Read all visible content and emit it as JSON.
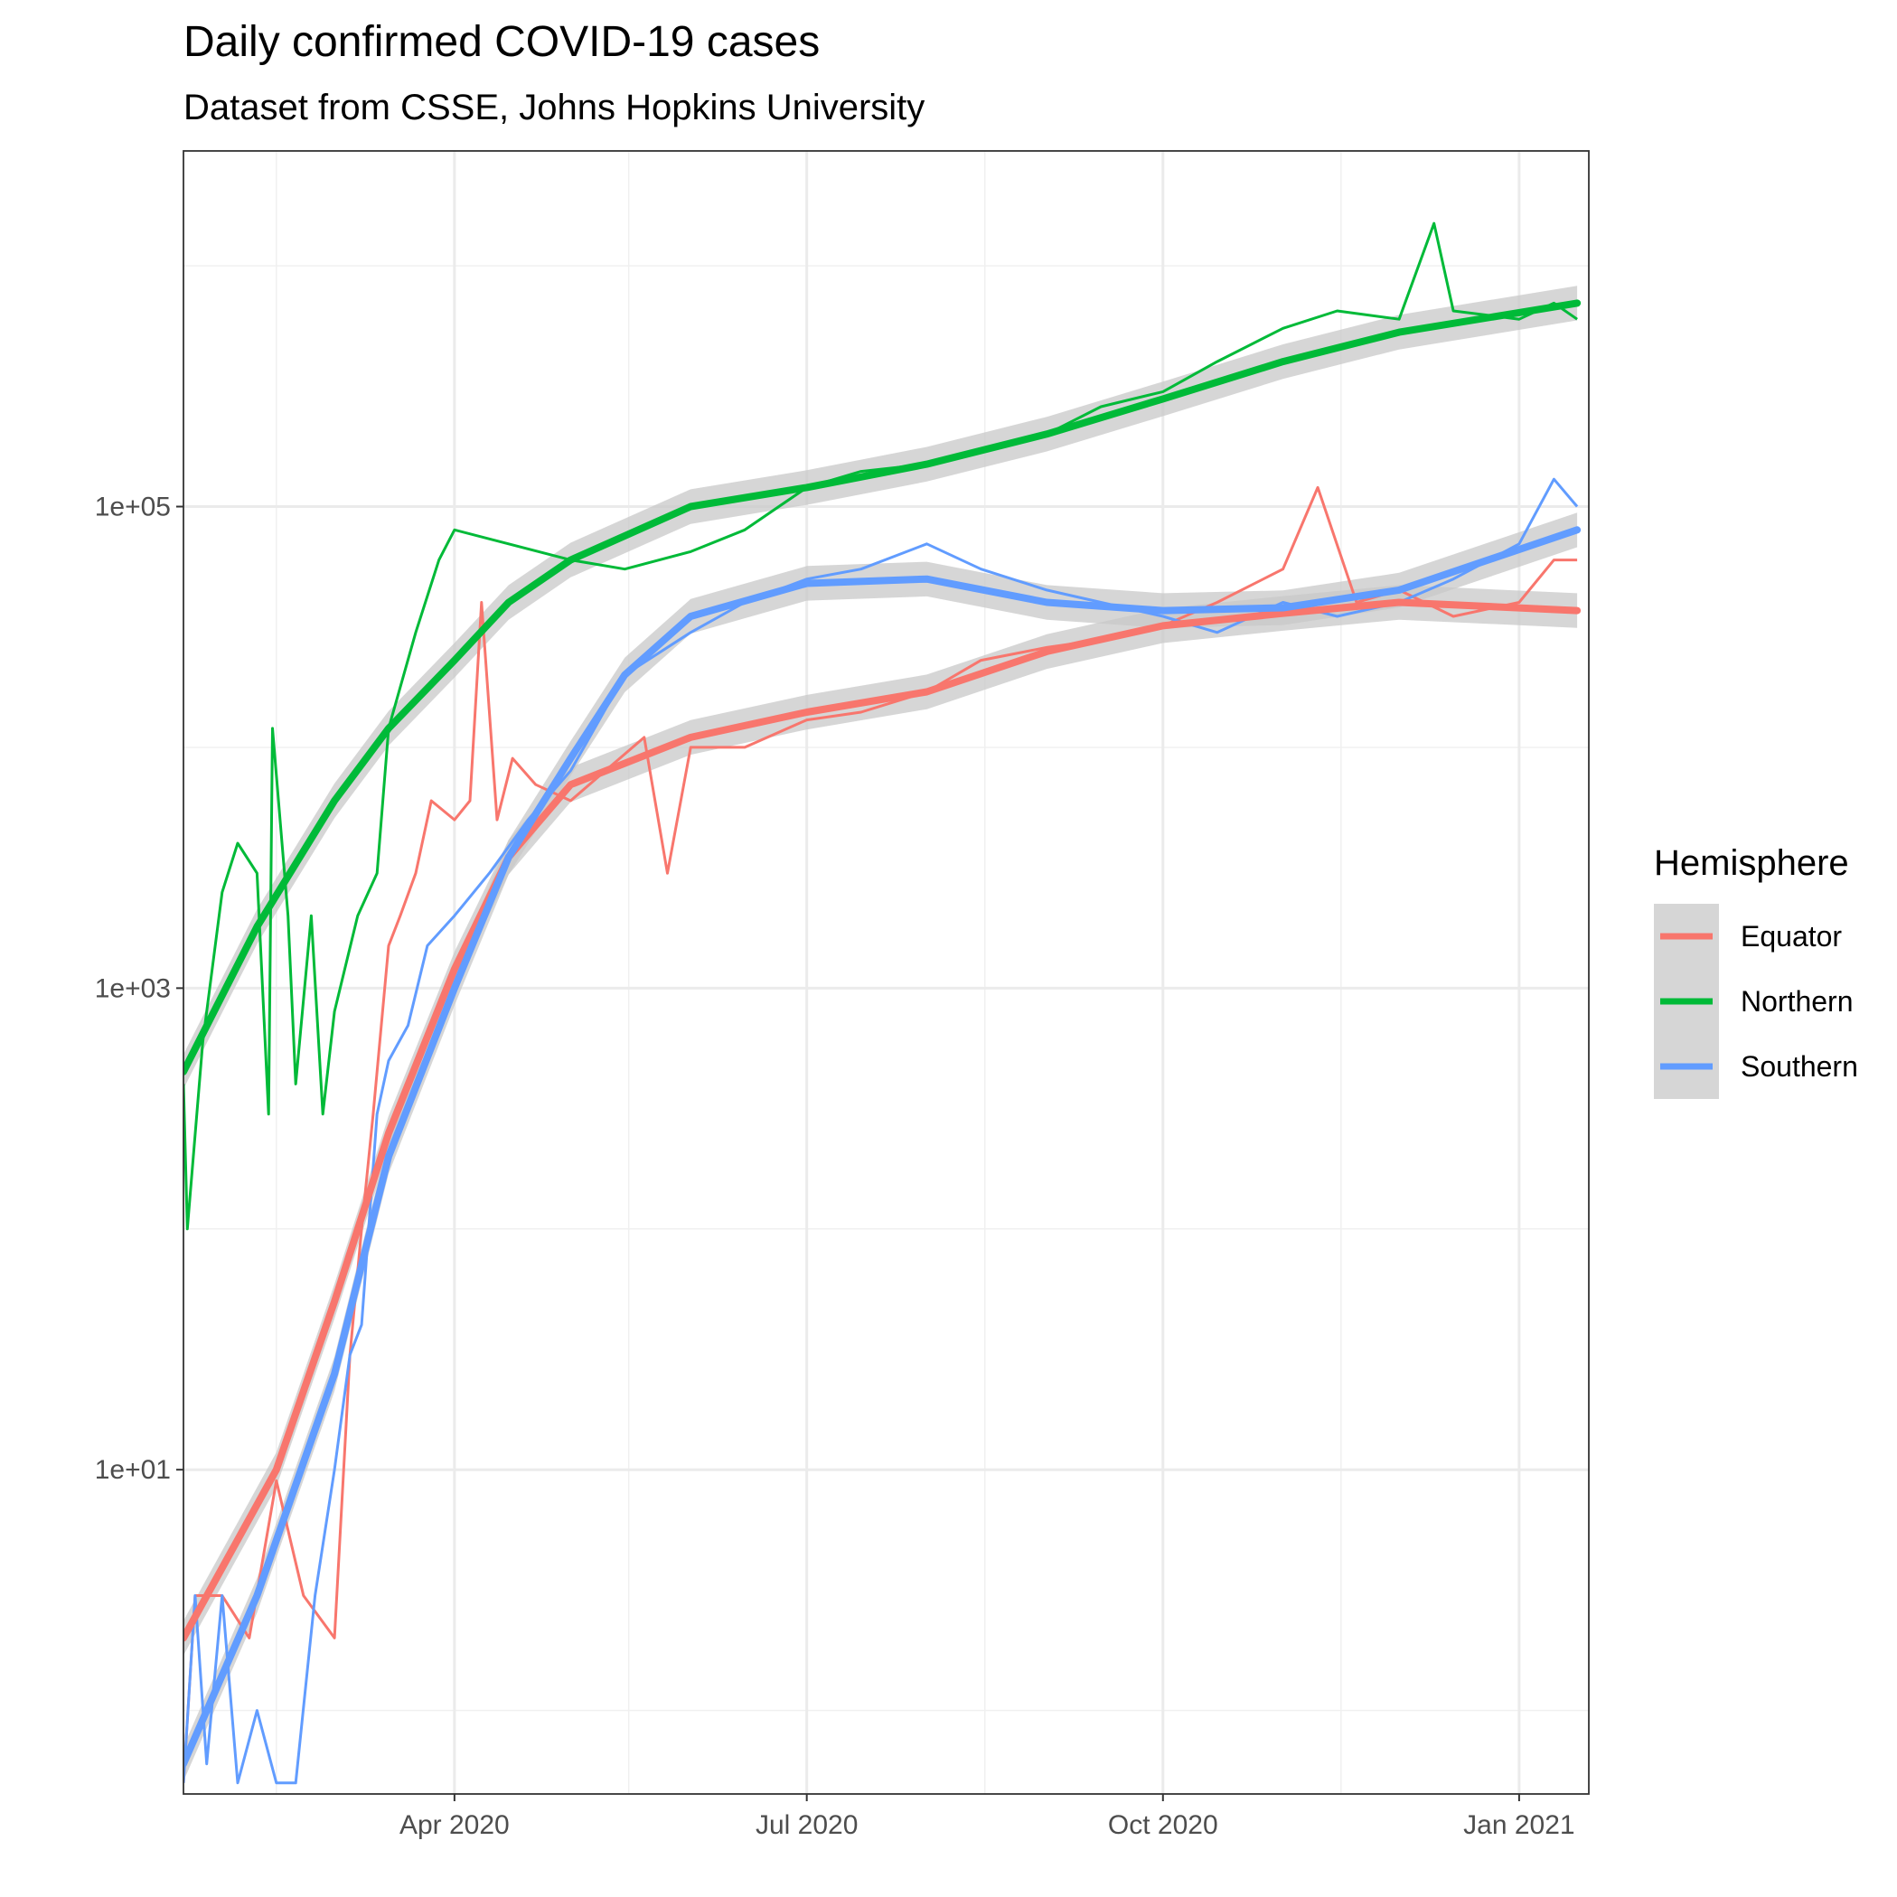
{
  "chart_data": {
    "type": "line",
    "title": "Daily confirmed COVID-19 cases",
    "subtitle": "Dataset from CSSE, Johns Hopkins University",
    "xlabel": "",
    "ylabel": "",
    "y_scale": "log10",
    "ylim": [
      0.45,
      3000000
    ],
    "xlim": [
      "2020-01-22",
      "2021-01-19"
    ],
    "grid": true,
    "x_ticks": [
      {
        "date": "2020-04-01",
        "label": "Apr 2020"
      },
      {
        "date": "2020-07-01",
        "label": "Jul 2020"
      },
      {
        "date": "2020-10-01",
        "label": "Oct 2020"
      },
      {
        "date": "2021-01-01",
        "label": "Jan 2021"
      }
    ],
    "y_ticks": [
      {
        "value": 10,
        "label": "1e+01"
      },
      {
        "value": 1000,
        "label": "1e+03"
      },
      {
        "value": 100000,
        "label": "1e+05"
      }
    ],
    "legend": {
      "title": "Hemisphere",
      "position": "right",
      "entries": [
        "Equator",
        "Northern",
        "Southern"
      ]
    },
    "colors": {
      "Equator": "#F8766D",
      "Northern": "#00BA38",
      "Southern": "#619CFF",
      "ribbon": "#c8c8c8"
    },
    "series": [
      {
        "name": "Equator",
        "color": "#F8766D",
        "daily": [
          [
            "2020-01-22",
            0.5
          ],
          [
            "2020-01-25",
            3
          ],
          [
            "2020-02-01",
            3
          ],
          [
            "2020-02-08",
            2
          ],
          [
            "2020-02-15",
            9
          ],
          [
            "2020-02-22",
            3
          ],
          [
            "2020-03-01",
            2
          ],
          [
            "2020-03-05",
            30
          ],
          [
            "2020-03-08",
            100
          ],
          [
            "2020-03-11",
            300
          ],
          [
            "2020-03-15",
            1500
          ],
          [
            "2020-03-18",
            2000
          ],
          [
            "2020-03-22",
            3000
          ],
          [
            "2020-03-26",
            6000
          ],
          [
            "2020-04-01",
            5000
          ],
          [
            "2020-04-05",
            6000
          ],
          [
            "2020-04-08",
            40000
          ],
          [
            "2020-04-12",
            5000
          ],
          [
            "2020-04-16",
            9000
          ],
          [
            "2020-04-22",
            7000
          ],
          [
            "2020-05-01",
            6000
          ],
          [
            "2020-05-10",
            8000
          ],
          [
            "2020-05-20",
            11000
          ],
          [
            "2020-05-26",
            3000
          ],
          [
            "2020-06-01",
            10000
          ],
          [
            "2020-06-15",
            10000
          ],
          [
            "2020-07-01",
            13000
          ],
          [
            "2020-07-15",
            14000
          ],
          [
            "2020-08-01",
            17000
          ],
          [
            "2020-08-15",
            23000
          ],
          [
            "2020-09-01",
            26000
          ],
          [
            "2020-09-15",
            28000
          ],
          [
            "2020-10-01",
            32000
          ],
          [
            "2020-10-15",
            40000
          ],
          [
            "2020-11-01",
            55000
          ],
          [
            "2020-11-10",
            120000
          ],
          [
            "2020-11-20",
            40000
          ],
          [
            "2020-12-01",
            45000
          ],
          [
            "2020-12-15",
            35000
          ],
          [
            "2021-01-01",
            40000
          ],
          [
            "2021-01-10",
            60000
          ],
          [
            "2021-01-16",
            60000
          ]
        ],
        "trend": [
          [
            "2020-01-22",
            2
          ],
          [
            "2020-02-15",
            10
          ],
          [
            "2020-03-01",
            50
          ],
          [
            "2020-03-15",
            250
          ],
          [
            "2020-04-01",
            1200
          ],
          [
            "2020-04-15",
            3500
          ],
          [
            "2020-05-01",
            7000
          ],
          [
            "2020-06-01",
            11000
          ],
          [
            "2020-07-01",
            14000
          ],
          [
            "2020-08-01",
            17000
          ],
          [
            "2020-09-01",
            25000
          ],
          [
            "2020-10-01",
            32000
          ],
          [
            "2020-11-01",
            36000
          ],
          [
            "2020-12-01",
            40000
          ],
          [
            "2021-01-16",
            37000
          ]
        ]
      },
      {
        "name": "Northern",
        "color": "#00BA38",
        "daily": [
          [
            "2020-01-22",
            400
          ],
          [
            "2020-01-23",
            100
          ],
          [
            "2020-01-27",
            600
          ],
          [
            "2020-02-01",
            2500
          ],
          [
            "2020-02-05",
            4000
          ],
          [
            "2020-02-10",
            3000
          ],
          [
            "2020-02-13",
            300
          ],
          [
            "2020-02-14",
            12000
          ],
          [
            "2020-02-18",
            2000
          ],
          [
            "2020-02-20",
            400
          ],
          [
            "2020-02-24",
            2000
          ],
          [
            "2020-02-27",
            300
          ],
          [
            "2020-03-01",
            800
          ],
          [
            "2020-03-07",
            2000
          ],
          [
            "2020-03-12",
            3000
          ],
          [
            "2020-03-15",
            12000
          ],
          [
            "2020-03-22",
            30000
          ],
          [
            "2020-03-28",
            60000
          ],
          [
            "2020-04-01",
            80000
          ],
          [
            "2020-04-15",
            70000
          ],
          [
            "2020-05-01",
            60000
          ],
          [
            "2020-05-15",
            55000
          ],
          [
            "2020-06-01",
            65000
          ],
          [
            "2020-06-15",
            80000
          ],
          [
            "2020-07-01",
            120000
          ],
          [
            "2020-07-15",
            140000
          ],
          [
            "2020-08-01",
            150000
          ],
          [
            "2020-08-15",
            170000
          ],
          [
            "2020-09-01",
            200000
          ],
          [
            "2020-09-15",
            260000
          ],
          [
            "2020-10-01",
            300000
          ],
          [
            "2020-10-15",
            400000
          ],
          [
            "2020-11-01",
            550000
          ],
          [
            "2020-11-15",
            650000
          ],
          [
            "2020-12-01",
            600000
          ],
          [
            "2020-12-10",
            1500000
          ],
          [
            "2020-12-15",
            650000
          ],
          [
            "2021-01-01",
            600000
          ],
          [
            "2021-01-10",
            700000
          ],
          [
            "2021-01-16",
            600000
          ]
        ],
        "trend": [
          [
            "2020-01-22",
            450
          ],
          [
            "2020-02-10",
            1800
          ],
          [
            "2020-03-01",
            6000
          ],
          [
            "2020-03-15",
            12000
          ],
          [
            "2020-04-01",
            23000
          ],
          [
            "2020-04-15",
            40000
          ],
          [
            "2020-05-01",
            60000
          ],
          [
            "2020-06-01",
            100000
          ],
          [
            "2020-07-01",
            120000
          ],
          [
            "2020-08-01",
            150000
          ],
          [
            "2020-09-01",
            200000
          ],
          [
            "2020-10-01",
            280000
          ],
          [
            "2020-11-01",
            400000
          ],
          [
            "2020-12-01",
            530000
          ],
          [
            "2021-01-16",
            700000
          ]
        ]
      },
      {
        "name": "Southern",
        "color": "#619CFF",
        "daily": [
          [
            "2020-01-22",
            0.5
          ],
          [
            "2020-01-25",
            3
          ],
          [
            "2020-01-28",
            0.6
          ],
          [
            "2020-02-01",
            3
          ],
          [
            "2020-02-05",
            0.5
          ],
          [
            "2020-02-10",
            1
          ],
          [
            "2020-02-15",
            0.5
          ],
          [
            "2020-02-20",
            0.5
          ],
          [
            "2020-02-25",
            3
          ],
          [
            "2020-03-01",
            10
          ],
          [
            "2020-03-05",
            30
          ],
          [
            "2020-03-08",
            40
          ],
          [
            "2020-03-12",
            300
          ],
          [
            "2020-03-15",
            500
          ],
          [
            "2020-03-20",
            700
          ],
          [
            "2020-03-25",
            1500
          ],
          [
            "2020-04-01",
            2000
          ],
          [
            "2020-04-10",
            3000
          ],
          [
            "2020-04-20",
            5000
          ],
          [
            "2020-05-01",
            8000
          ],
          [
            "2020-05-15",
            20000
          ],
          [
            "2020-06-01",
            30000
          ],
          [
            "2020-06-15",
            40000
          ],
          [
            "2020-07-01",
            50000
          ],
          [
            "2020-07-15",
            55000
          ],
          [
            "2020-08-01",
            70000
          ],
          [
            "2020-08-15",
            55000
          ],
          [
            "2020-09-01",
            45000
          ],
          [
            "2020-09-15",
            40000
          ],
          [
            "2020-10-01",
            35000
          ],
          [
            "2020-10-15",
            30000
          ],
          [
            "2020-11-01",
            40000
          ],
          [
            "2020-11-15",
            35000
          ],
          [
            "2020-12-01",
            40000
          ],
          [
            "2020-12-15",
            50000
          ],
          [
            "2021-01-01",
            70000
          ],
          [
            "2021-01-10",
            130000
          ],
          [
            "2021-01-16",
            100000
          ]
        ],
        "trend": [
          [
            "2020-01-22",
            0.6
          ],
          [
            "2020-02-10",
            3
          ],
          [
            "2020-03-01",
            25
          ],
          [
            "2020-03-15",
            200
          ],
          [
            "2020-04-01",
            1000
          ],
          [
            "2020-04-15",
            3500
          ],
          [
            "2020-05-01",
            9000
          ],
          [
            "2020-05-15",
            20000
          ],
          [
            "2020-06-01",
            35000
          ],
          [
            "2020-07-01",
            48000
          ],
          [
            "2020-08-01",
            50000
          ],
          [
            "2020-09-01",
            40000
          ],
          [
            "2020-10-01",
            37000
          ],
          [
            "2020-11-01",
            38000
          ],
          [
            "2020-12-01",
            45000
          ],
          [
            "2021-01-16",
            80000
          ]
        ]
      }
    ]
  }
}
